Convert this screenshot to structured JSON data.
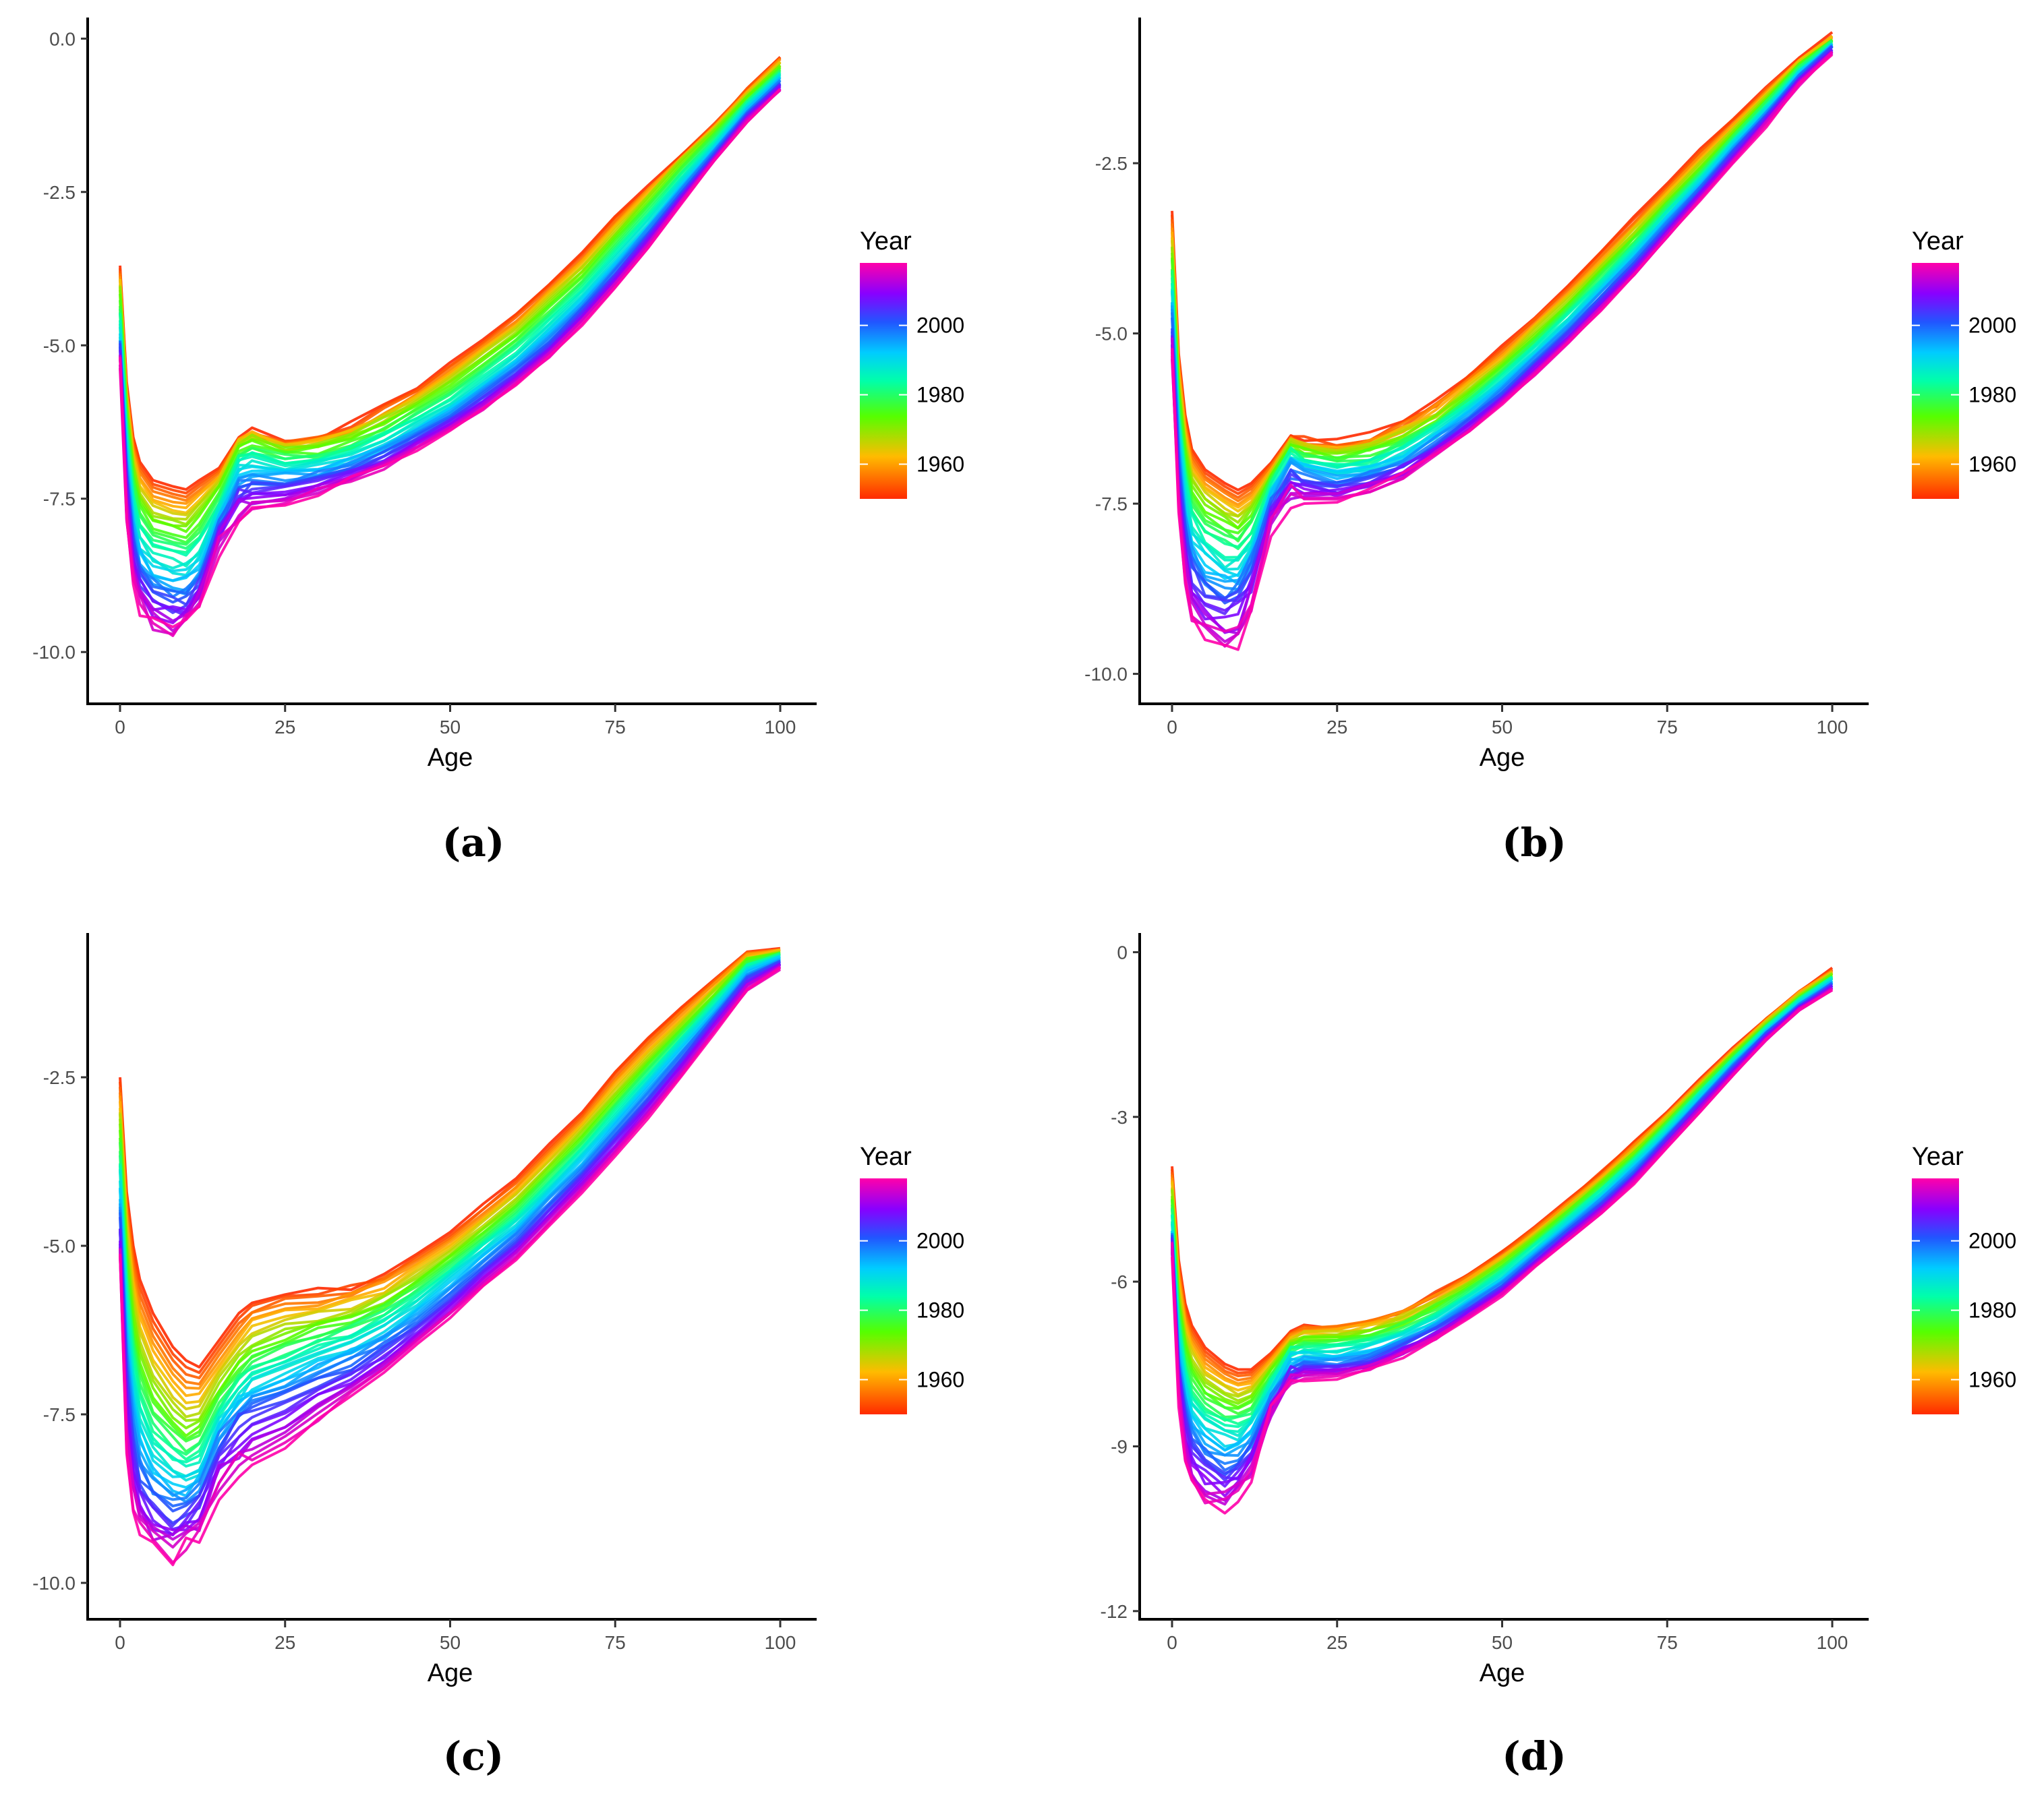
{
  "chart_data": [
    {
      "type": "line",
      "caption": "(a)",
      "xlabel": "Age",
      "ylabel": "",
      "xlim": [
        0,
        100
      ],
      "ylim": [
        -10.8,
        0.3
      ],
      "xticks": [
        0,
        25,
        50,
        75,
        100
      ],
      "yticks": [
        0.0,
        -2.5,
        -5.0,
        -7.5,
        -10.0
      ],
      "ytick_labels": [
        "0.0",
        "-2.5",
        "-5.0",
        "-7.5",
        "-10.0"
      ],
      "legend": {
        "title": "Year",
        "labels": [
          "2000",
          "1980",
          "1960"
        ],
        "placement": "right"
      },
      "years": [
        1950,
        2018
      ],
      "x": [
        0,
        1,
        2,
        3,
        5,
        8,
        10,
        12,
        15,
        18,
        20,
        25,
        30,
        35,
        40,
        45,
        50,
        55,
        60,
        65,
        70,
        75,
        80,
        85,
        90,
        95,
        100
      ],
      "series": [
        {
          "values": [
            -3.7,
            -5.6,
            -6.5,
            -6.9,
            -7.2,
            -7.3,
            -7.35,
            -7.2,
            -7.0,
            -6.5,
            -6.4,
            -6.6,
            -6.5,
            -6.3,
            -6.0,
            -5.7,
            -5.3,
            -4.9,
            -4.5,
            -4.0,
            -3.5,
            -2.9,
            -2.4,
            -1.9,
            -1.4,
            -0.8,
            -0.3
          ]
        },
        {
          "values": [
            -4.1,
            -6.0,
            -7.0,
            -7.5,
            -7.8,
            -7.9,
            -7.95,
            -7.7,
            -7.3,
            -6.6,
            -6.5,
            -6.7,
            -6.65,
            -6.5,
            -6.25,
            -5.95,
            -5.6,
            -5.2,
            -4.8,
            -4.3,
            -3.8,
            -3.2,
            -2.6,
            -2.0,
            -1.5,
            -0.95,
            -0.45
          ]
        },
        {
          "values": [
            -4.8,
            -6.6,
            -7.7,
            -8.2,
            -8.5,
            -8.6,
            -8.65,
            -8.4,
            -7.7,
            -7.0,
            -6.9,
            -7.0,
            -6.95,
            -6.8,
            -6.6,
            -6.3,
            -6.0,
            -5.6,
            -5.2,
            -4.7,
            -4.2,
            -3.6,
            -3.0,
            -2.35,
            -1.75,
            -1.1,
            -0.6
          ]
        },
        {
          "values": [
            -5.1,
            -7.2,
            -8.3,
            -8.8,
            -9.1,
            -9.2,
            -9.2,
            -8.9,
            -8.0,
            -7.4,
            -7.3,
            -7.3,
            -7.2,
            -7.05,
            -6.8,
            -6.5,
            -6.2,
            -5.85,
            -5.45,
            -5.0,
            -4.45,
            -3.85,
            -3.2,
            -2.55,
            -1.9,
            -1.25,
            -0.75
          ]
        },
        {
          "values": [
            -5.3,
            -7.8,
            -8.8,
            -9.3,
            -9.6,
            -9.7,
            -9.6,
            -9.3,
            -8.3,
            -7.8,
            -7.7,
            -7.6,
            -7.4,
            -7.2,
            -7.0,
            -6.7,
            -6.4,
            -6.05,
            -5.65,
            -5.2,
            -4.65,
            -4.05,
            -3.4,
            -2.7,
            -2.0,
            -1.35,
            -0.85
          ]
        }
      ]
    },
    {
      "type": "line",
      "caption": "(b)",
      "xlabel": "Age",
      "ylabel": "",
      "xlim": [
        0,
        100
      ],
      "ylim": [
        -10.4,
        -0.4
      ],
      "xticks": [
        0,
        25,
        50,
        75,
        100
      ],
      "yticks": [
        -2.5,
        -5.0,
        -7.5,
        -10.0
      ],
      "ytick_labels": [
        "-2.5",
        "-5.0",
        "-7.5",
        "-10.0"
      ],
      "legend": {
        "title": "Year",
        "labels": [
          "2000",
          "1980",
          "1960"
        ],
        "placement": "right"
      },
      "years": [
        1950,
        2018
      ],
      "x": [
        0,
        1,
        2,
        3,
        5,
        8,
        10,
        12,
        15,
        18,
        20,
        25,
        30,
        35,
        40,
        45,
        50,
        55,
        60,
        65,
        70,
        75,
        80,
        85,
        90,
        95,
        100
      ],
      "series": [
        {
          "values": [
            -3.2,
            -5.3,
            -6.2,
            -6.7,
            -7.0,
            -7.2,
            -7.3,
            -7.2,
            -6.9,
            -6.5,
            -6.55,
            -6.6,
            -6.5,
            -6.3,
            -6.0,
            -5.6,
            -5.2,
            -4.75,
            -4.3,
            -3.8,
            -3.3,
            -2.8,
            -2.3,
            -1.85,
            -1.4,
            -0.95,
            -0.6
          ]
        },
        {
          "values": [
            -3.8,
            -5.8,
            -6.7,
            -7.2,
            -7.5,
            -7.7,
            -7.8,
            -7.6,
            -7.1,
            -6.6,
            -6.7,
            -6.8,
            -6.7,
            -6.5,
            -6.25,
            -5.85,
            -5.45,
            -5.0,
            -4.55,
            -4.05,
            -3.55,
            -3.05,
            -2.55,
            -2.05,
            -1.55,
            -1.05,
            -0.7
          ]
        },
        {
          "values": [
            -4.4,
            -6.4,
            -7.4,
            -7.9,
            -8.2,
            -8.4,
            -8.4,
            -8.1,
            -7.3,
            -6.8,
            -6.9,
            -7.0,
            -6.95,
            -6.75,
            -6.45,
            -6.1,
            -5.7,
            -5.25,
            -4.8,
            -4.3,
            -3.8,
            -3.25,
            -2.75,
            -2.2,
            -1.7,
            -1.15,
            -0.75
          ]
        },
        {
          "values": [
            -5.0,
            -7.0,
            -8.0,
            -8.5,
            -8.8,
            -9.0,
            -8.9,
            -8.5,
            -7.6,
            -7.1,
            -7.2,
            -7.25,
            -7.15,
            -6.95,
            -6.65,
            -6.3,
            -5.9,
            -5.45,
            -5.0,
            -4.5,
            -4.0,
            -3.45,
            -2.9,
            -2.35,
            -1.8,
            -1.25,
            -0.8
          ]
        },
        {
          "values": [
            -5.3,
            -7.6,
            -8.7,
            -9.2,
            -9.5,
            -9.6,
            -9.5,
            -9.1,
            -7.9,
            -7.4,
            -7.45,
            -7.45,
            -7.3,
            -7.1,
            -6.8,
            -6.45,
            -6.05,
            -5.6,
            -5.15,
            -4.65,
            -4.15,
            -3.6,
            -3.05,
            -2.5,
            -1.95,
            -1.35,
            -0.9
          ]
        }
      ]
    },
    {
      "type": "line",
      "caption": "(c)",
      "xlabel": "Age",
      "ylabel": "",
      "xlim": [
        0,
        100
      ],
      "ylim": [
        -10.5,
        -0.4
      ],
      "xticks": [
        0,
        25,
        50,
        75,
        100
      ],
      "yticks": [
        -2.5,
        -5.0,
        -7.5,
        -10.0
      ],
      "ytick_labels": [
        "-2.5",
        "-5.0",
        "-7.5",
        "-10.0"
      ],
      "legend": {
        "title": "Year",
        "labels": [
          "2000",
          "1980",
          "1960"
        ],
        "placement": "right"
      },
      "years": [
        1950,
        2018
      ],
      "x": [
        0,
        1,
        2,
        3,
        5,
        8,
        10,
        12,
        15,
        18,
        20,
        25,
        30,
        35,
        40,
        45,
        50,
        55,
        60,
        65,
        70,
        75,
        80,
        85,
        90,
        95,
        100
      ],
      "series": [
        {
          "values": [
            -2.5,
            -4.2,
            -5.0,
            -5.5,
            -6.0,
            -6.5,
            -6.7,
            -6.8,
            -6.4,
            -6.0,
            -5.8,
            -5.7,
            -5.65,
            -5.6,
            -5.4,
            -5.1,
            -4.8,
            -4.4,
            -4.0,
            -3.5,
            -3.0,
            -2.4,
            -1.9,
            -1.45,
            -1.05,
            -0.65,
            -0.6
          ]
        },
        {
          "values": [
            -3.2,
            -5.0,
            -6.0,
            -6.6,
            -7.1,
            -7.5,
            -7.7,
            -7.6,
            -7.1,
            -6.7,
            -6.5,
            -6.3,
            -6.15,
            -6.0,
            -5.8,
            -5.5,
            -5.15,
            -4.75,
            -4.35,
            -3.85,
            -3.35,
            -2.8,
            -2.25,
            -1.75,
            -1.25,
            -0.75,
            -0.65
          ]
        },
        {
          "values": [
            -4.0,
            -6.0,
            -7.0,
            -7.6,
            -8.1,
            -8.3,
            -8.4,
            -8.3,
            -7.6,
            -7.2,
            -7.0,
            -6.8,
            -6.6,
            -6.45,
            -6.2,
            -5.85,
            -5.45,
            -5.05,
            -4.65,
            -4.15,
            -3.65,
            -3.1,
            -2.55,
            -2.0,
            -1.45,
            -0.9,
            -0.7
          ]
        },
        {
          "values": [
            -4.8,
            -7.0,
            -8.0,
            -8.5,
            -8.8,
            -9.0,
            -9.0,
            -8.8,
            -8.0,
            -7.6,
            -7.5,
            -7.3,
            -7.05,
            -6.85,
            -6.55,
            -6.2,
            -5.8,
            -5.35,
            -4.95,
            -4.45,
            -3.95,
            -3.4,
            -2.85,
            -2.25,
            -1.65,
            -1.05,
            -0.8
          ]
        },
        {
          "values": [
            -5.2,
            -8.0,
            -8.9,
            -9.3,
            -9.5,
            -9.6,
            -9.5,
            -9.3,
            -8.7,
            -8.3,
            -8.2,
            -8.0,
            -7.6,
            -7.2,
            -6.85,
            -6.45,
            -6.05,
            -5.6,
            -5.2,
            -4.7,
            -4.2,
            -3.65,
            -3.1,
            -2.5,
            -1.85,
            -1.2,
            -0.9
          ]
        }
      ]
    },
    {
      "type": "line",
      "caption": "(d)",
      "xlabel": "Age",
      "ylabel": "",
      "xlim": [
        0,
        100
      ],
      "ylim": [
        -12.1,
        0.3
      ],
      "xticks": [
        0,
        25,
        50,
        75,
        100
      ],
      "yticks": [
        0,
        -3,
        -6,
        -9,
        -12
      ],
      "ytick_labels": [
        "0",
        "-3",
        "-6",
        "-9",
        "-12"
      ],
      "legend": {
        "title": "Year",
        "labels": [
          "2000",
          "1980",
          "1960"
        ],
        "placement": "right"
      },
      "years": [
        1950,
        2018
      ],
      "x": [
        0,
        1,
        2,
        3,
        5,
        8,
        10,
        12,
        15,
        18,
        20,
        25,
        30,
        35,
        40,
        45,
        50,
        55,
        60,
        65,
        70,
        75,
        80,
        85,
        90,
        95,
        100
      ],
      "series": [
        {
          "values": [
            -3.9,
            -5.6,
            -6.4,
            -6.8,
            -7.2,
            -7.5,
            -7.6,
            -7.6,
            -7.3,
            -6.9,
            -6.8,
            -6.8,
            -6.7,
            -6.5,
            -6.2,
            -5.85,
            -5.45,
            -5.0,
            -4.5,
            -4.0,
            -3.45,
            -2.9,
            -2.3,
            -1.75,
            -1.2,
            -0.7,
            -0.3
          ]
        },
        {
          "values": [
            -4.4,
            -6.3,
            -7.1,
            -7.5,
            -7.9,
            -8.1,
            -8.2,
            -8.1,
            -7.6,
            -7.1,
            -7.0,
            -7.0,
            -6.9,
            -6.7,
            -6.4,
            -6.05,
            -5.65,
            -5.2,
            -4.7,
            -4.2,
            -3.65,
            -3.05,
            -2.45,
            -1.85,
            -1.3,
            -0.8,
            -0.4
          ]
        },
        {
          "values": [
            -5.0,
            -7.0,
            -7.8,
            -8.3,
            -8.6,
            -8.8,
            -8.8,
            -8.6,
            -7.9,
            -7.35,
            -7.3,
            -7.3,
            -7.2,
            -7.0,
            -6.7,
            -6.3,
            -5.9,
            -5.4,
            -4.9,
            -4.4,
            -3.85,
            -3.25,
            -2.6,
            -2.0,
            -1.4,
            -0.9,
            -0.5
          ]
        },
        {
          "values": [
            -5.3,
            -7.6,
            -8.5,
            -9.0,
            -9.3,
            -9.5,
            -9.4,
            -9.1,
            -8.2,
            -7.6,
            -7.55,
            -7.55,
            -7.45,
            -7.2,
            -6.9,
            -6.5,
            -6.1,
            -5.6,
            -5.1,
            -4.6,
            -4.05,
            -3.4,
            -2.75,
            -2.1,
            -1.5,
            -1.0,
            -0.6
          ]
        },
        {
          "values": [
            -5.4,
            -8.2,
            -9.2,
            -9.7,
            -10.0,
            -10.1,
            -9.9,
            -9.5,
            -8.4,
            -7.8,
            -7.75,
            -7.75,
            -7.6,
            -7.35,
            -7.05,
            -6.65,
            -6.25,
            -5.75,
            -5.25,
            -4.75,
            -4.2,
            -3.55,
            -2.9,
            -2.25,
            -1.6,
            -1.05,
            -0.7
          ]
        }
      ]
    }
  ]
}
